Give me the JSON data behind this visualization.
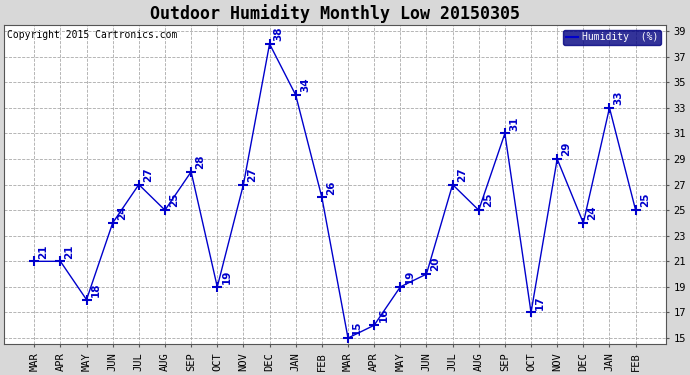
{
  "title": "Outdoor Humidity Monthly Low 20150305",
  "copyright": "Copyright 2015 Cartronics.com",
  "legend_label": "Humidity  (%)",
  "x_labels": [
    "MAR",
    "APR",
    "MAY",
    "JUN",
    "JUL",
    "AUG",
    "SEP",
    "OCT",
    "NOV",
    "DEC",
    "JAN",
    "FEB",
    "MAR",
    "APR",
    "MAY",
    "JUN",
    "JUL",
    "AUG",
    "SEP",
    "OCT",
    "NOV",
    "DEC",
    "JAN",
    "FEB"
  ],
  "y_values": [
    21,
    21,
    18,
    24,
    27,
    25,
    28,
    19,
    27,
    38,
    34,
    26,
    15,
    16,
    19,
    20,
    27,
    25,
    31,
    17,
    29,
    24,
    33,
    25
  ],
  "ylim": [
    14.5,
    39.5
  ],
  "yticks": [
    15,
    17,
    19,
    21,
    23,
    25,
    27,
    29,
    31,
    33,
    35,
    37,
    39
  ],
  "line_color": "#0000cc",
  "marker": "+",
  "marker_size": 7,
  "marker_linewidth": 1.5,
  "label_color": "#0000cc",
  "outer_bg_color": "#d8d8d8",
  "plot_bg_color": "#ffffff",
  "grid_color": "#aaaaaa",
  "title_fontsize": 12,
  "tick_fontsize": 7.5,
  "annot_fontsize": 7.5,
  "copyright_fontsize": 7
}
